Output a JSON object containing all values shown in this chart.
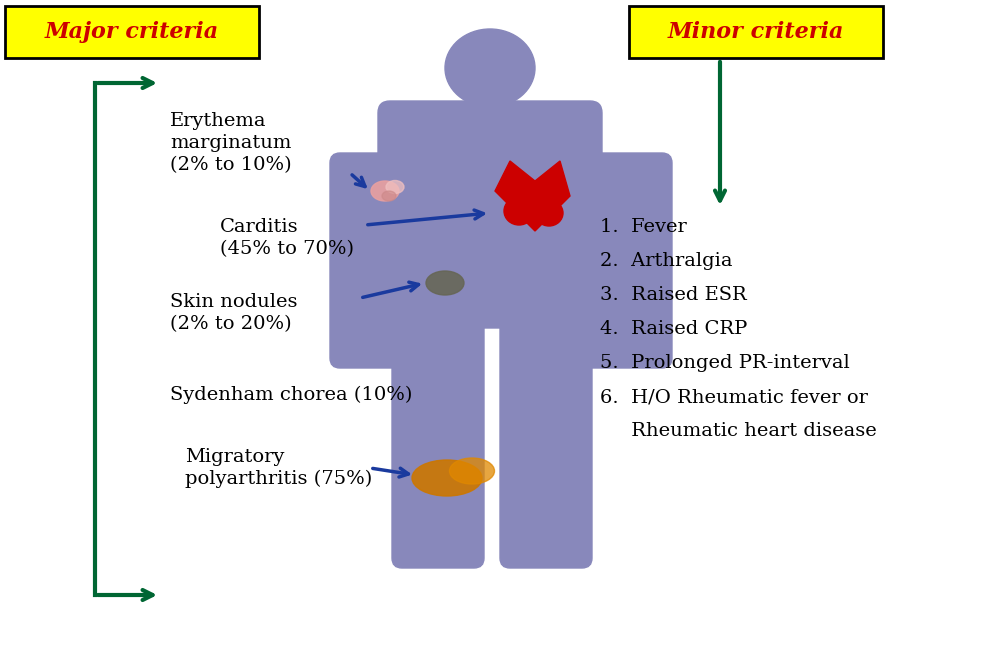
{
  "bg_color": "#ffffff",
  "figure_size": [
    10.0,
    6.53
  ],
  "dpi": 100,
  "body_color": "#8888bb",
  "major_criteria_box_color": "#ffff00",
  "major_criteria_box_edge": "#000000",
  "major_criteria_text": "Major criteria",
  "major_criteria_text_color": "#cc0000",
  "minor_criteria_box_color": "#ffff00",
  "minor_criteria_box_edge": "#000000",
  "minor_criteria_text": "Minor criteria",
  "minor_criteria_text_color": "#cc0000",
  "arrow_color_major": "#1a3a9e",
  "arrow_color_minor": "#006633",
  "bracket_color": "#006633",
  "major_labels": [
    "Erythema\nmarginatum\n(2% to 10%)",
    "Carditis\n(45% to 70%)",
    "Skin nodules\n(2% to 20%)",
    "Sydenham chorea (10%)",
    "Migratory\npolyarthritis (75%)"
  ],
  "minor_list_lines": [
    "1.  Fever",
    "2.  Arthralgia",
    "3.  Raised ESR",
    "4.  Raised CRP",
    "5.  Prolonged PR-interval",
    "6.  H/O Rheumatic fever or",
    "     Rheumatic heart disease"
  ],
  "heart_color": "#cc0000",
  "nodule_color": "#666655",
  "joint_color": "#cc7700",
  "skin_mark_color": "#e8a0a0",
  "text_fontsize": 14,
  "title_fontsize": 16
}
